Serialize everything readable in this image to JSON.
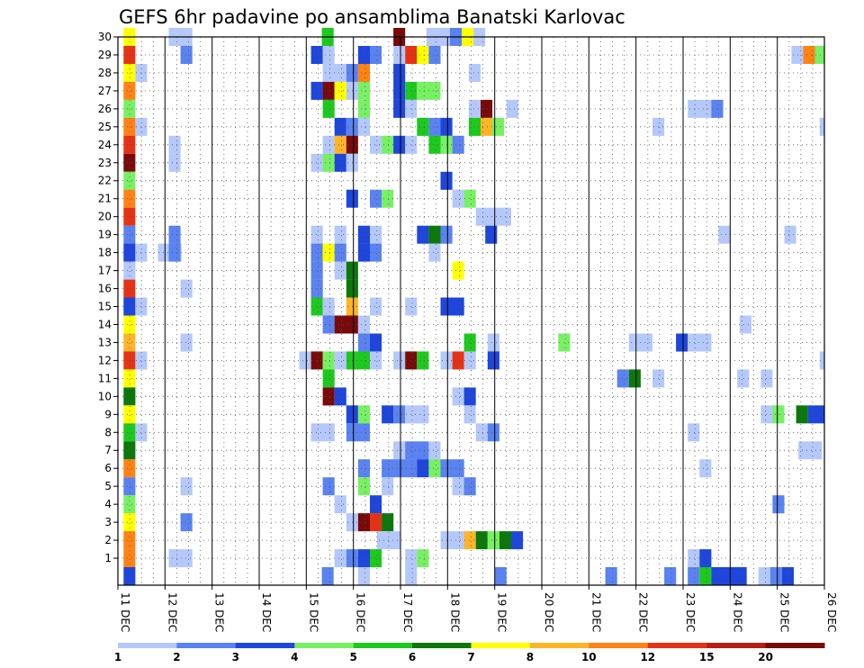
{
  "chart_data": {
    "type": "heatmap",
    "title": "GEFS 6hr padavine po ansamblima Banatski Karlovac",
    "y_ticks": [
      1,
      2,
      3,
      4,
      5,
      6,
      7,
      8,
      9,
      10,
      11,
      12,
      13,
      14,
      15,
      16,
      17,
      18,
      19,
      20,
      21,
      22,
      23,
      24,
      25,
      26,
      27,
      28,
      29,
      30
    ],
    "x_ticks": [
      "11 DEC",
      "12 DEC",
      "13 DEC",
      "14 DEC",
      "15 DEC",
      "16 DEC",
      "17 DEC",
      "18 DEC",
      "19 DEC",
      "20 DEC",
      "21 DEC",
      "22 DEC",
      "23 DEC",
      "24 DEC",
      "25 DEC",
      "26 DEC"
    ],
    "x_range_days": [
      0,
      15
    ],
    "y_range": [
      0,
      30
    ],
    "grid": true,
    "colorbar": {
      "levels": [
        1,
        2,
        3,
        4,
        5,
        6,
        7,
        8,
        10,
        12,
        15,
        20
      ],
      "labels": [
        "1",
        "2",
        "3",
        "4",
        "5",
        "6",
        "7",
        "8",
        "10",
        "12",
        "15",
        "20"
      ],
      "colors": [
        "#b4c8fa",
        "#5a82f0",
        "#1e46dc",
        "#78f064",
        "#1ec81e",
        "#0a780a",
        "#ffff00",
        "#ffb428",
        "#ff8214",
        "#e63214",
        "#b41e14",
        "#780a0a"
      ]
    },
    "cells_format": "member, day offset from 11 DEC, length in days, color class 0-11",
    "cells": [
      [
        30,
        0.12,
        0.25,
        6
      ],
      [
        30,
        1.08,
        0.5,
        0
      ],
      [
        30,
        4.33,
        0.25,
        4
      ],
      [
        30,
        5.85,
        0.25,
        11
      ],
      [
        30,
        6.55,
        0.5,
        0
      ],
      [
        30,
        7.05,
        0.25,
        1
      ],
      [
        30,
        7.3,
        0.25,
        6
      ],
      [
        30,
        7.55,
        0.25,
        0
      ],
      [
        29,
        0.12,
        0.25,
        9
      ],
      [
        29,
        1.33,
        0.25,
        1
      ],
      [
        29,
        4.1,
        0.25,
        2
      ],
      [
        29,
        4.35,
        0.25,
        0
      ],
      [
        29,
        5.1,
        0.25,
        2
      ],
      [
        29,
        5.35,
        0.25,
        1
      ],
      [
        29,
        5.85,
        0.25,
        0
      ],
      [
        29,
        6.1,
        0.25,
        9
      ],
      [
        29,
        6.35,
        0.25,
        6
      ],
      [
        29,
        6.6,
        0.25,
        1
      ],
      [
        29,
        14.3,
        0.25,
        0
      ],
      [
        29,
        14.55,
        0.25,
        8
      ],
      [
        29,
        14.8,
        0.25,
        3
      ],
      [
        28,
        0.12,
        0.25,
        6
      ],
      [
        28,
        0.37,
        0.25,
        0
      ],
      [
        28,
        4.35,
        0.5,
        0
      ],
      [
        28,
        4.85,
        0.25,
        1
      ],
      [
        28,
        5.1,
        0.25,
        8
      ],
      [
        28,
        5.85,
        0.25,
        2
      ],
      [
        28,
        7.45,
        0.25,
        0
      ],
      [
        27,
        0.12,
        0.25,
        8
      ],
      [
        27,
        4.1,
        0.25,
        2
      ],
      [
        27,
        4.35,
        0.25,
        11
      ],
      [
        27,
        4.6,
        0.25,
        6
      ],
      [
        27,
        4.85,
        0.25,
        0
      ],
      [
        27,
        5.1,
        0.25,
        3
      ],
      [
        27,
        5.85,
        0.25,
        2
      ],
      [
        27,
        6.1,
        0.25,
        4
      ],
      [
        27,
        6.35,
        0.5,
        3
      ],
      [
        26,
        0.12,
        0.25,
        3
      ],
      [
        26,
        4.35,
        0.25,
        4
      ],
      [
        26,
        5.1,
        0.25,
        3
      ],
      [
        26,
        5.85,
        0.25,
        2
      ],
      [
        26,
        6.1,
        0.25,
        0
      ],
      [
        26,
        7.45,
        0.25,
        0
      ],
      [
        26,
        7.7,
        0.25,
        11
      ],
      [
        26,
        8.25,
        0.25,
        0
      ],
      [
        26,
        12.1,
        0.5,
        0
      ],
      [
        26,
        12.6,
        0.25,
        1
      ],
      [
        25,
        0.12,
        0.25,
        8
      ],
      [
        25,
        0.37,
        0.25,
        0
      ],
      [
        25,
        4.6,
        0.25,
        2
      ],
      [
        25,
        4.85,
        0.25,
        1
      ],
      [
        25,
        5.1,
        0.25,
        0
      ],
      [
        25,
        6.35,
        0.25,
        4
      ],
      [
        25,
        6.6,
        0.25,
        1
      ],
      [
        25,
        6.85,
        0.25,
        2
      ],
      [
        25,
        7.45,
        0.25,
        4
      ],
      [
        25,
        7.7,
        0.25,
        7
      ],
      [
        25,
        7.95,
        0.25,
        3
      ],
      [
        25,
        11.35,
        0.25,
        0
      ],
      [
        25,
        14.9,
        0.1,
        0
      ],
      [
        24,
        0.12,
        0.25,
        9
      ],
      [
        24,
        1.08,
        0.25,
        0
      ],
      [
        24,
        4.35,
        0.25,
        0
      ],
      [
        24,
        4.6,
        0.25,
        7
      ],
      [
        24,
        4.85,
        0.25,
        11
      ],
      [
        24,
        5.35,
        0.25,
        0
      ],
      [
        24,
        5.6,
        0.25,
        3
      ],
      [
        24,
        5.85,
        0.25,
        2
      ],
      [
        24,
        6.1,
        0.25,
        0
      ],
      [
        24,
        6.6,
        0.25,
        4
      ],
      [
        24,
        6.85,
        0.25,
        3
      ],
      [
        24,
        7.1,
        0.25,
        1
      ],
      [
        23,
        0.12,
        0.25,
        11
      ],
      [
        23,
        1.08,
        0.25,
        0
      ],
      [
        23,
        4.1,
        0.25,
        0
      ],
      [
        23,
        4.35,
        0.25,
        3
      ],
      [
        23,
        4.6,
        0.25,
        2
      ],
      [
        23,
        4.85,
        0.25,
        0
      ],
      [
        22,
        0.12,
        0.25,
        3
      ],
      [
        22,
        6.85,
        0.25,
        2
      ],
      [
        21,
        0.12,
        0.25,
        8
      ],
      [
        21,
        4.85,
        0.25,
        2
      ],
      [
        21,
        5.35,
        0.25,
        1
      ],
      [
        21,
        5.6,
        0.25,
        3
      ],
      [
        21,
        7.1,
        0.25,
        0
      ],
      [
        21,
        7.35,
        0.25,
        3
      ],
      [
        20,
        0.12,
        0.25,
        9
      ],
      [
        20,
        7.6,
        0.75,
        0
      ],
      [
        19,
        0.12,
        0.25,
        1
      ],
      [
        19,
        1.08,
        0.25,
        1
      ],
      [
        19,
        4.1,
        0.25,
        0
      ],
      [
        19,
        4.6,
        0.25,
        0
      ],
      [
        19,
        5.1,
        0.25,
        2
      ],
      [
        19,
        5.35,
        0.25,
        0
      ],
      [
        19,
        6.35,
        0.25,
        2
      ],
      [
        19,
        6.6,
        0.25,
        5
      ],
      [
        19,
        6.85,
        0.25,
        1
      ],
      [
        19,
        7.8,
        0.25,
        2
      ],
      [
        19,
        12.75,
        0.25,
        0
      ],
      [
        19,
        14.15,
        0.25,
        0
      ],
      [
        18,
        0.12,
        0.25,
        2
      ],
      [
        18,
        0.37,
        0.25,
        0
      ],
      [
        18,
        0.85,
        0.5,
        0
      ],
      [
        18,
        1.08,
        0.25,
        1
      ],
      [
        18,
        4.1,
        0.25,
        1
      ],
      [
        18,
        4.35,
        0.25,
        6
      ],
      [
        18,
        4.6,
        0.25,
        1
      ],
      [
        18,
        5.1,
        0.25,
        2
      ],
      [
        18,
        5.35,
        0.25,
        1
      ],
      [
        18,
        6.6,
        0.25,
        0
      ],
      [
        17,
        0.12,
        0.25,
        0
      ],
      [
        17,
        4.1,
        0.25,
        1
      ],
      [
        17,
        4.6,
        0.25,
        0
      ],
      [
        17,
        4.85,
        0.25,
        5
      ],
      [
        17,
        7.1,
        0.25,
        6
      ],
      [
        16,
        0.12,
        0.25,
        9
      ],
      [
        16,
        1.33,
        0.25,
        0
      ],
      [
        16,
        4.1,
        0.25,
        1
      ],
      [
        16,
        4.85,
        0.25,
        5
      ],
      [
        15,
        0.12,
        0.25,
        2
      ],
      [
        15,
        0.37,
        0.25,
        0
      ],
      [
        15,
        4.1,
        0.25,
        4
      ],
      [
        15,
        4.35,
        0.25,
        0
      ],
      [
        15,
        4.85,
        0.25,
        7
      ],
      [
        15,
        5.35,
        0.25,
        0
      ],
      [
        15,
        6.1,
        0.25,
        0
      ],
      [
        15,
        6.85,
        0.5,
        2
      ],
      [
        14,
        0.12,
        0.25,
        6
      ],
      [
        14,
        4.35,
        0.25,
        1
      ],
      [
        14,
        4.6,
        0.5,
        11
      ],
      [
        14,
        5.1,
        0.25,
        0
      ],
      [
        14,
        13.2,
        0.25,
        0
      ],
      [
        13,
        0.12,
        0.25,
        7
      ],
      [
        13,
        1.33,
        0.25,
        0
      ],
      [
        13,
        5.1,
        0.25,
        1
      ],
      [
        13,
        5.35,
        0.25,
        2
      ],
      [
        13,
        7.35,
        0.25,
        4
      ],
      [
        13,
        7.85,
        0.25,
        0
      ],
      [
        13,
        9.35,
        0.25,
        3
      ],
      [
        13,
        10.85,
        0.5,
        0
      ],
      [
        13,
        11.85,
        0.25,
        2
      ],
      [
        13,
        12.1,
        0.5,
        0
      ],
      [
        12,
        0.12,
        0.25,
        9
      ],
      [
        12,
        0.37,
        0.25,
        0
      ],
      [
        12,
        3.85,
        0.25,
        0
      ],
      [
        12,
        4.1,
        0.25,
        11
      ],
      [
        12,
        4.35,
        0.25,
        3
      ],
      [
        12,
        4.6,
        0.25,
        0
      ],
      [
        12,
        4.85,
        0.5,
        4
      ],
      [
        12,
        5.35,
        0.25,
        0
      ],
      [
        12,
        5.85,
        0.25,
        0
      ],
      [
        12,
        6.1,
        0.25,
        11
      ],
      [
        12,
        6.35,
        0.25,
        4
      ],
      [
        12,
        6.85,
        0.25,
        0
      ],
      [
        12,
        7.1,
        0.25,
        9
      ],
      [
        12,
        7.35,
        0.25,
        0
      ],
      [
        12,
        7.85,
        0.25,
        2
      ],
      [
        12,
        14.9,
        0.1,
        0
      ],
      [
        11,
        0.12,
        0.25,
        6
      ],
      [
        11,
        4.35,
        0.25,
        4
      ],
      [
        11,
        10.6,
        0.25,
        1
      ],
      [
        11,
        10.85,
        0.25,
        5
      ],
      [
        11,
        11.35,
        0.25,
        0
      ],
      [
        11,
        13.15,
        0.25,
        0
      ],
      [
        11,
        13.65,
        0.25,
        0
      ],
      [
        10,
        0.12,
        0.25,
        5
      ],
      [
        10,
        4.35,
        0.25,
        11
      ],
      [
        10,
        4.6,
        0.25,
        2
      ],
      [
        10,
        7.1,
        0.25,
        0
      ],
      [
        10,
        7.35,
        0.25,
        2
      ],
      [
        9,
        0.12,
        0.25,
        6
      ],
      [
        9,
        4.85,
        0.25,
        2
      ],
      [
        9,
        5.1,
        0.25,
        3
      ],
      [
        9,
        5.6,
        0.25,
        2
      ],
      [
        9,
        5.85,
        0.25,
        1
      ],
      [
        9,
        6.1,
        0.5,
        0
      ],
      [
        9,
        7.35,
        0.25,
        0
      ],
      [
        9,
        13.65,
        0.25,
        0
      ],
      [
        9,
        13.9,
        0.25,
        3
      ],
      [
        9,
        14.4,
        0.25,
        5
      ],
      [
        9,
        14.65,
        0.35,
        2
      ],
      [
        8,
        0.12,
        0.25,
        4
      ],
      [
        8,
        0.37,
        0.25,
        0
      ],
      [
        8,
        4.1,
        0.5,
        0
      ],
      [
        8,
        4.85,
        0.5,
        1
      ],
      [
        8,
        7.6,
        0.25,
        0
      ],
      [
        8,
        7.85,
        0.25,
        1
      ],
      [
        8,
        12.1,
        0.25,
        0
      ],
      [
        7,
        0.12,
        0.25,
        5
      ],
      [
        7,
        5.85,
        0.25,
        0
      ],
      [
        7,
        6.1,
        0.5,
        1
      ],
      [
        7,
        6.6,
        0.25,
        0
      ],
      [
        7,
        14.45,
        0.5,
        0
      ],
      [
        6,
        0.12,
        0.25,
        8
      ],
      [
        6,
        5.1,
        0.25,
        1
      ],
      [
        6,
        5.6,
        0.75,
        1
      ],
      [
        6,
        6.35,
        0.25,
        2
      ],
      [
        6,
        6.6,
        0.25,
        3
      ],
      [
        6,
        6.85,
        0.5,
        1
      ],
      [
        6,
        12.35,
        0.25,
        0
      ],
      [
        5,
        0.12,
        0.25,
        1
      ],
      [
        5,
        1.33,
        0.25,
        0
      ],
      [
        5,
        4.35,
        0.25,
        1
      ],
      [
        5,
        5.1,
        0.25,
        3
      ],
      [
        5,
        5.6,
        0.25,
        0
      ],
      [
        5,
        7.1,
        0.25,
        0
      ],
      [
        5,
        7.35,
        0.25,
        1
      ],
      [
        4,
        0.12,
        0.25,
        3
      ],
      [
        4,
        4.6,
        0.25,
        0
      ],
      [
        4,
        5.35,
        0.25,
        2
      ],
      [
        4,
        13.9,
        0.25,
        1
      ],
      [
        3,
        0.12,
        0.25,
        6
      ],
      [
        3,
        1.33,
        0.25,
        1
      ],
      [
        3,
        4.85,
        0.25,
        0
      ],
      [
        3,
        5.1,
        0.25,
        11
      ],
      [
        3,
        5.35,
        0.25,
        9
      ],
      [
        3,
        5.6,
        0.25,
        5
      ],
      [
        2,
        0.12,
        0.25,
        8
      ],
      [
        2,
        5.5,
        0.5,
        0
      ],
      [
        2,
        6.85,
        0.5,
        0
      ],
      [
        2,
        7.35,
        0.25,
        7
      ],
      [
        2,
        7.6,
        0.25,
        5
      ],
      [
        2,
        7.85,
        0.25,
        3
      ],
      [
        2,
        8.1,
        0.25,
        5
      ],
      [
        2,
        8.35,
        0.25,
        2
      ],
      [
        1,
        0.12,
        0.25,
        8
      ],
      [
        1,
        1.08,
        0.5,
        0
      ],
      [
        1,
        4.6,
        0.25,
        0
      ],
      [
        1,
        4.85,
        0.25,
        1
      ],
      [
        1,
        5.1,
        0.25,
        2
      ],
      [
        1,
        5.35,
        0.25,
        4
      ],
      [
        1,
        6.1,
        0.25,
        0
      ],
      [
        1,
        6.35,
        0.25,
        3
      ],
      [
        1,
        12.1,
        0.25,
        0
      ],
      [
        1,
        12.35,
        0.25,
        2
      ],
      [
        0,
        0.12,
        0.25,
        2
      ],
      [
        0,
        4.33,
        0.25,
        1
      ],
      [
        0,
        5.1,
        0.25,
        0
      ],
      [
        0,
        6.1,
        0.25,
        0
      ],
      [
        0,
        8.0,
        0.25,
        1
      ],
      [
        0,
        10.35,
        0.25,
        1
      ],
      [
        0,
        11.6,
        0.25,
        1
      ],
      [
        0,
        12.1,
        0.25,
        1
      ],
      [
        0,
        12.35,
        0.25,
        4
      ],
      [
        0,
        12.6,
        0.75,
        2
      ],
      [
        0,
        13.6,
        0.25,
        0
      ],
      [
        0,
        13.85,
        0.25,
        1
      ],
      [
        0,
        14.1,
        0.25,
        2
      ]
    ]
  }
}
